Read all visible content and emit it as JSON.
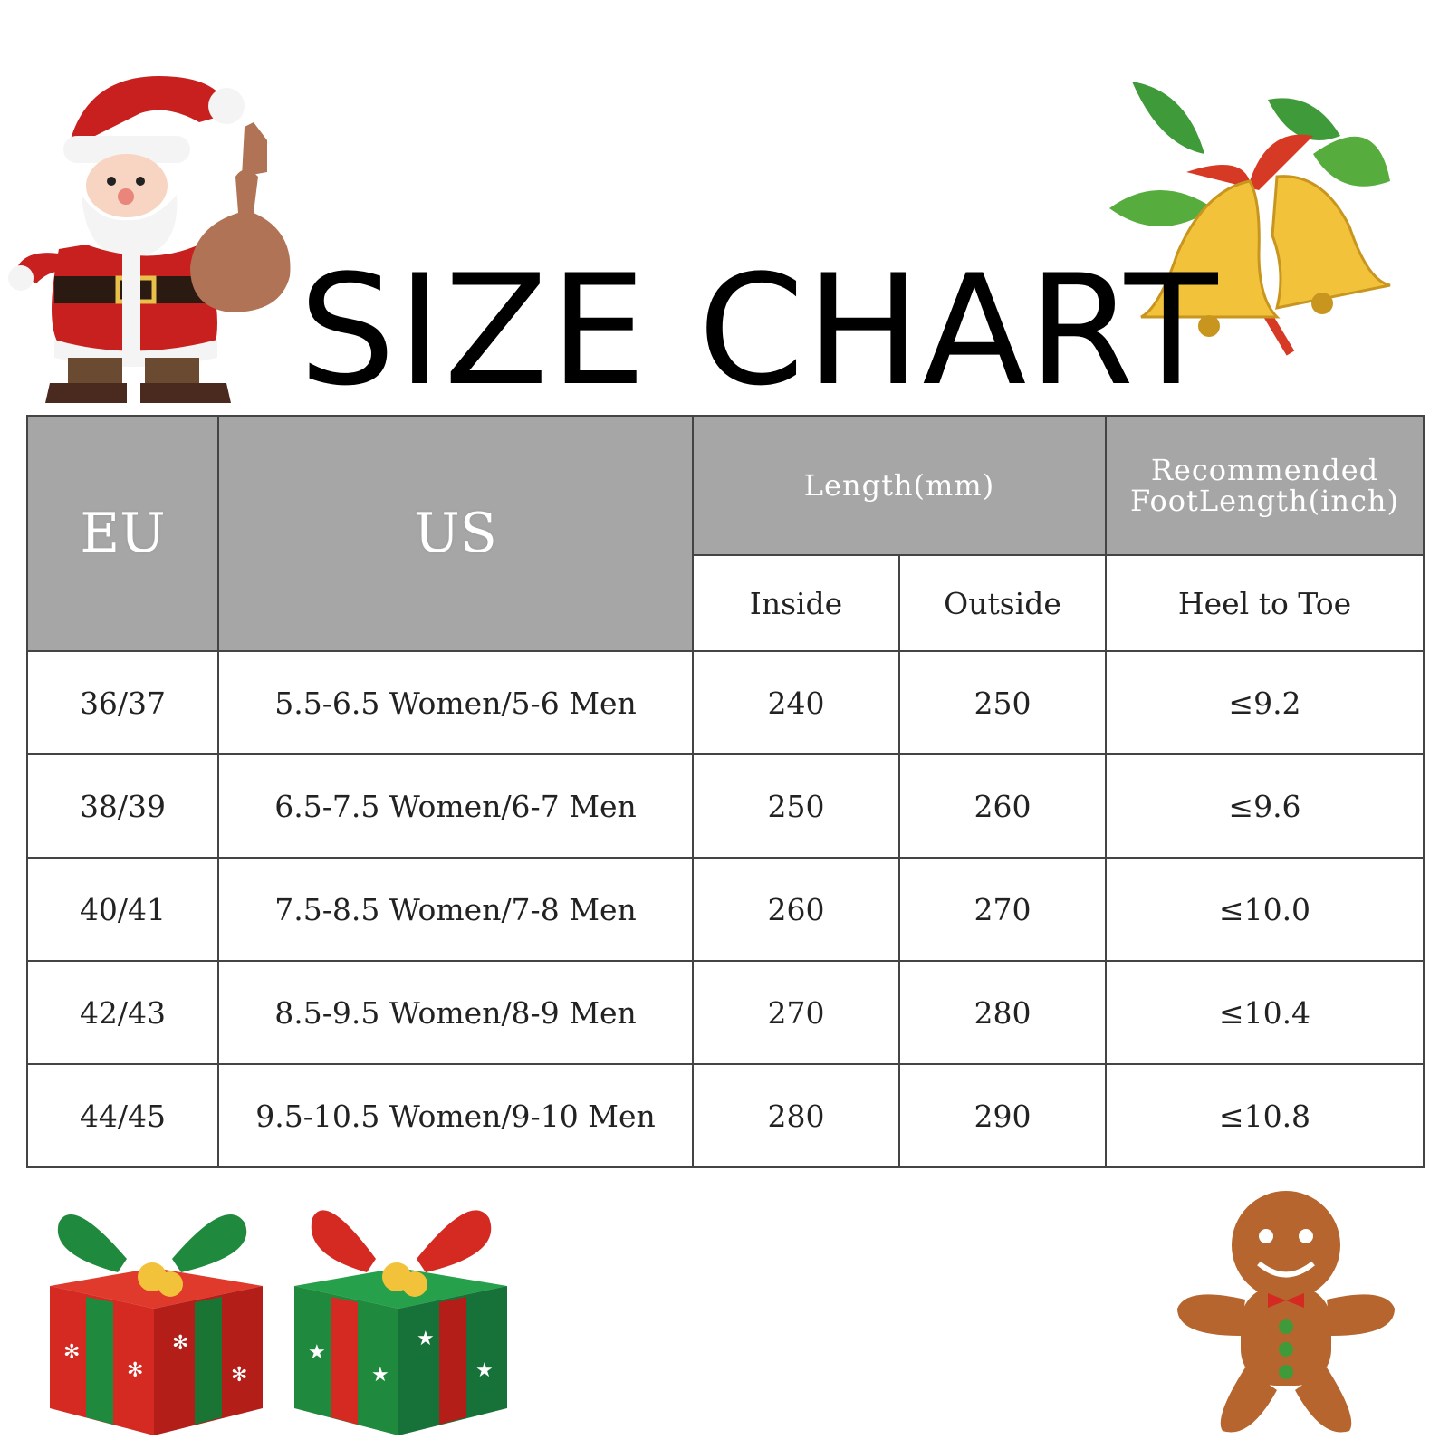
{
  "title": "SIZE CHART",
  "table": {
    "header": {
      "eu": "EU",
      "us": "US",
      "length": "Length(mm)",
      "recommended_line1": "Recommended",
      "recommended_line2": "FootLength(inch)",
      "inside": "Inside",
      "outside": "Outside",
      "heel_to_toe": "Heel to Toe"
    },
    "rows": [
      {
        "eu": "36/37",
        "us": "5.5-6.5 Women/5-6 Men",
        "inside": "240",
        "outside": "250",
        "foot": "≤9.2"
      },
      {
        "eu": "38/39",
        "us": "6.5-7.5 Women/6-7 Men",
        "inside": "250",
        "outside": "260",
        "foot": "≤9.6"
      },
      {
        "eu": "40/41",
        "us": "7.5-8.5 Women/7-8 Men",
        "inside": "260",
        "outside": "270",
        "foot": "≤10.0"
      },
      {
        "eu": "42/43",
        "us": "8.5-9.5 Women/8-9 Men",
        "inside": "270",
        "outside": "280",
        "foot": "≤10.4"
      },
      {
        "eu": "44/45",
        "us": "9.5-10.5 Women/9-10 Men",
        "inside": "280",
        "outside": "290",
        "foot": "≤10.8"
      }
    ]
  },
  "colors": {
    "header_grey": "#a6a6a6",
    "santa_red": "#c8201e",
    "bell_gold": "#f2c23a",
    "holly_green": "#3f9a3a",
    "gift_red": "#d42a22",
    "gift_green": "#1f8a3e",
    "gingerbread": "#b5652d"
  },
  "icons": [
    "santa-icon",
    "bells-icon",
    "gift-red-icon",
    "gift-green-icon",
    "gingerbread-icon"
  ]
}
